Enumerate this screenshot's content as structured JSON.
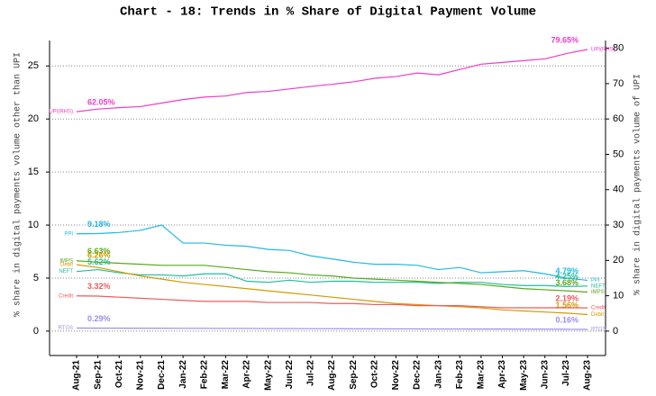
{
  "chart_data": {
    "type": "line",
    "title": "Chart - 18: Trends in % Share of Digital Payment Volume",
    "y_label": "% share in digital payments volume other than UPI",
    "y2_label": "% share in digital payments volume of UPI",
    "categories": [
      "Aug-21",
      "Sep-21",
      "Oct-21",
      "Nov-21",
      "Dec-21",
      "Jan-22",
      "Feb-22",
      "Mar-22",
      "Apr-22",
      "May-22",
      "Jun-22",
      "Jul-22",
      "Aug-22",
      "Sep-22",
      "Oct-22",
      "Nov-22",
      "Dec-22",
      "Jan-23",
      "Feb-23",
      "Mar-23",
      "Apr-23",
      "May-23",
      "Jun-23",
      "Jul-23",
      "Aug-23"
    ],
    "ylim": [
      -2.3,
      27.4
    ],
    "yticks": [
      0,
      5,
      10,
      15,
      20,
      25
    ],
    "y2lim": [
      -6.9,
      82.2
    ],
    "y2ticks": [
      0,
      10,
      20,
      30,
      40,
      50,
      60,
      70,
      80
    ],
    "grid": true,
    "series": [
      {
        "name": "UPI(RHS)",
        "color": "#f03cc8",
        "axis": "y2",
        "values": [
          62.05,
          62.8,
          63.2,
          63.5,
          64.5,
          65.5,
          66.2,
          66.5,
          67.5,
          67.8,
          68.5,
          69.2,
          69.8,
          70.5,
          71.5,
          72,
          73,
          72.5,
          74,
          75.5,
          76,
          76.5,
          77,
          78.5,
          79.65
        ],
        "value_labels": [
          "62.05%",
          null,
          null,
          null,
          null,
          null,
          null,
          null,
          null,
          null,
          null,
          null,
          null,
          null,
          null,
          null,
          null,
          null,
          null,
          null,
          null,
          null,
          null,
          null,
          "79.65%"
        ]
      },
      {
        "name": "PPI",
        "color": "#22b8e6",
        "values": [
          9.18,
          9.2,
          9.3,
          9.5,
          10.0,
          8.3,
          8.3,
          8.1,
          8.0,
          7.7,
          7.6,
          7.1,
          6.8,
          6.5,
          6.3,
          6.3,
          6.2,
          5.8,
          6.0,
          5.5,
          5.6,
          5.7,
          5.4,
          5.0,
          4.79
        ],
        "value_labels": [
          "9.18%",
          null,
          null,
          null,
          null,
          null,
          null,
          null,
          null,
          null,
          null,
          null,
          null,
          null,
          null,
          null,
          null,
          null,
          null,
          null,
          null,
          null,
          null,
          null,
          "4.79%"
        ]
      },
      {
        "name": "NEFT",
        "color": "#1fbf9c",
        "values": [
          5.62,
          5.8,
          5.5,
          5.3,
          5.3,
          5.2,
          5.4,
          5.4,
          4.7,
          4.6,
          4.8,
          4.6,
          4.7,
          4.7,
          4.6,
          4.6,
          4.6,
          4.5,
          4.6,
          4.6,
          4.4,
          4.3,
          4.3,
          4.2,
          4.25
        ],
        "value_labels": [
          "5.62%",
          null,
          null,
          null,
          null,
          null,
          null,
          null,
          null,
          null,
          null,
          null,
          null,
          null,
          null,
          null,
          null,
          null,
          null,
          null,
          null,
          null,
          null,
          null,
          "4.25%"
        ]
      },
      {
        "name": "IMPS",
        "color": "#58a81c",
        "values": [
          6.63,
          6.5,
          6.4,
          6.3,
          6.2,
          6.2,
          6.2,
          6.0,
          5.8,
          5.6,
          5.5,
          5.3,
          5.2,
          5.0,
          4.9,
          4.8,
          4.7,
          4.6,
          4.5,
          4.4,
          4.2,
          4.0,
          3.9,
          3.8,
          3.68
        ],
        "value_labels": [
          "6.63%",
          null,
          null,
          null,
          null,
          null,
          null,
          null,
          null,
          null,
          null,
          null,
          null,
          null,
          null,
          null,
          null,
          null,
          null,
          null,
          null,
          null,
          null,
          null,
          "3.68%"
        ]
      },
      {
        "name": "Debit",
        "color": "#d39a00",
        "values": [
          6.26,
          6.0,
          5.6,
          5.2,
          4.9,
          4.6,
          4.4,
          4.2,
          4.0,
          3.8,
          3.6,
          3.4,
          3.2,
          3.0,
          2.8,
          2.6,
          2.5,
          2.4,
          2.3,
          2.2,
          2.0,
          1.9,
          1.8,
          1.7,
          1.56
        ],
        "value_labels": [
          "6.26%",
          null,
          null,
          null,
          null,
          null,
          null,
          null,
          null,
          null,
          null,
          null,
          null,
          null,
          null,
          null,
          null,
          null,
          null,
          null,
          null,
          null,
          null,
          null,
          "1.56%"
        ]
      },
      {
        "name": "Credit",
        "color": "#ef5a5a",
        "values": [
          3.32,
          3.3,
          3.2,
          3.1,
          3.0,
          2.9,
          2.8,
          2.8,
          2.8,
          2.7,
          2.7,
          2.7,
          2.6,
          2.6,
          2.5,
          2.5,
          2.4,
          2.4,
          2.4,
          2.3,
          2.2,
          2.2,
          2.2,
          2.2,
          2.19
        ],
        "value_labels": [
          "3.32%",
          null,
          null,
          null,
          null,
          null,
          null,
          null,
          null,
          null,
          null,
          null,
          null,
          null,
          null,
          null,
          null,
          null,
          null,
          null,
          null,
          null,
          null,
          null,
          "2.19%"
        ]
      },
      {
        "name": "RTGS",
        "color": "#9a8ee8",
        "values": [
          0.29,
          0.28,
          0.28,
          0.27,
          0.27,
          0.26,
          0.26,
          0.25,
          0.25,
          0.24,
          0.24,
          0.23,
          0.23,
          0.22,
          0.22,
          0.21,
          0.21,
          0.2,
          0.2,
          0.19,
          0.19,
          0.18,
          0.18,
          0.17,
          0.16
        ],
        "value_labels": [
          "0.29%",
          null,
          null,
          null,
          null,
          null,
          null,
          null,
          null,
          null,
          null,
          null,
          null,
          null,
          null,
          null,
          null,
          null,
          null,
          null,
          null,
          null,
          null,
          null,
          "0.16%"
        ]
      }
    ]
  }
}
